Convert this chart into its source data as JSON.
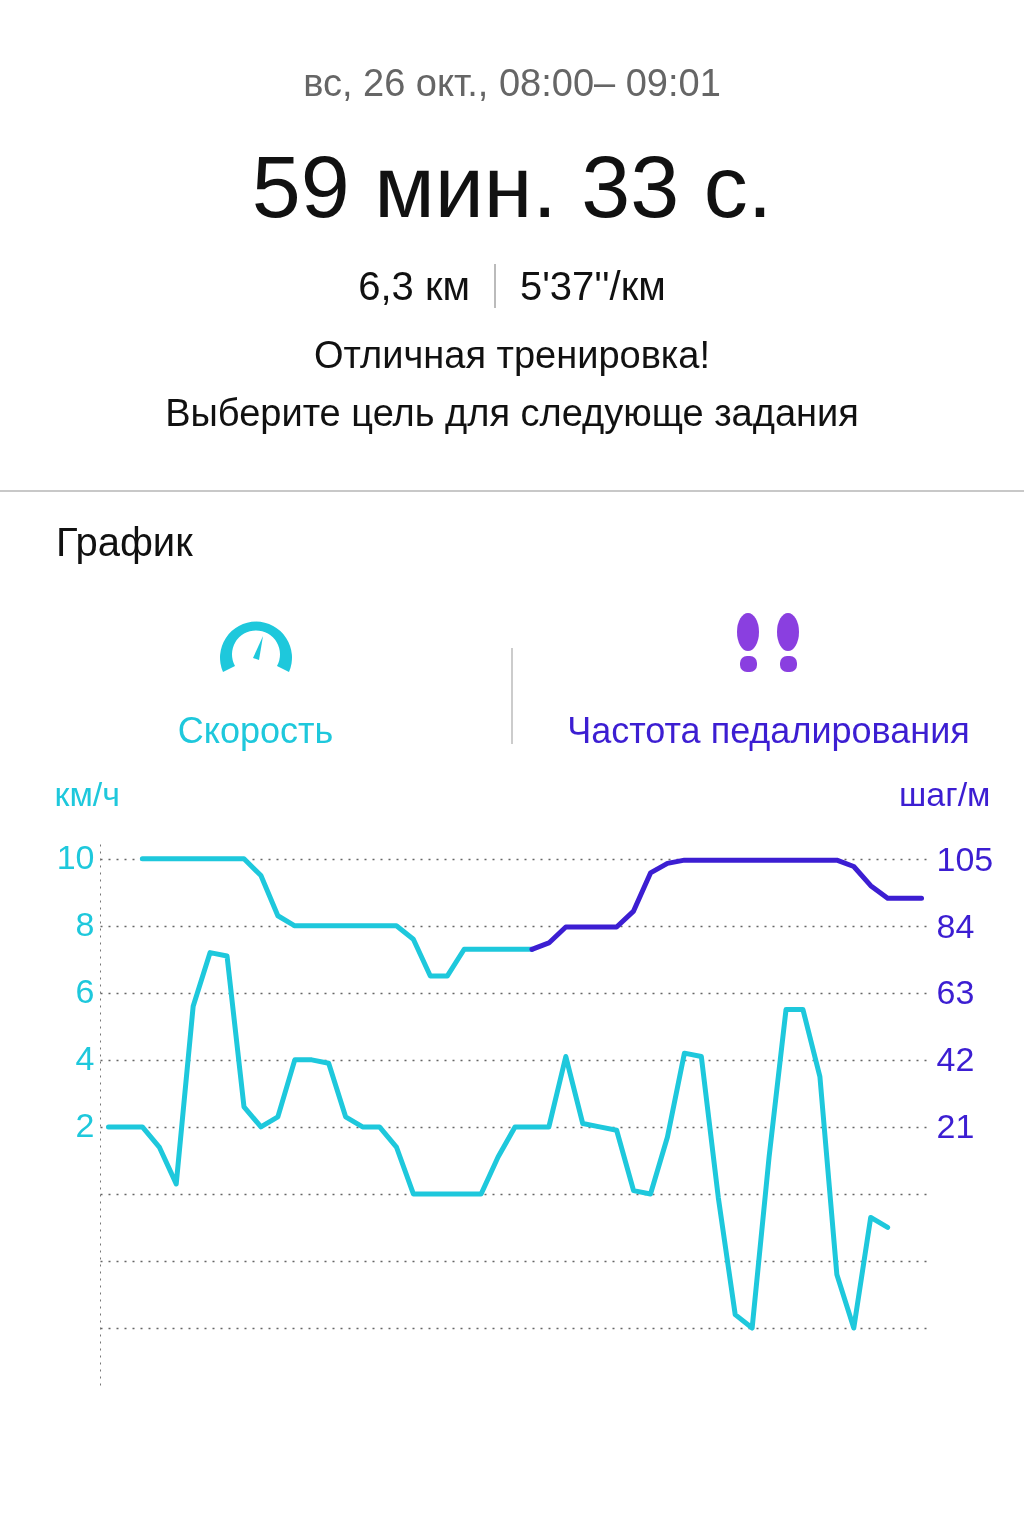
{
  "chart_data": {
    "type": "line",
    "title": "График",
    "annotations": [
      "вс, 26 окт., 08:00– 09:01",
      "59 мин. 33 с.",
      "6,3 км",
      "5'37''/км",
      "Отличная тренировка!",
      "Выберите цель для следующе задания"
    ],
    "ylabel": "км/ч",
    "y2label": "шаг/м",
    "categories": [
      null,
      null,
      null,
      null,
      null,
      null,
      null,
      null,
      null,
      null,
      null,
      null,
      null,
      null,
      null,
      null,
      null,
      null,
      null,
      null,
      null,
      null,
      null,
      null,
      null,
      null,
      null,
      null,
      null,
      null,
      null,
      null,
      null,
      null,
      null,
      null,
      null,
      null,
      null,
      null,
      null,
      null,
      null,
      null,
      null,
      null,
      null,
      null,
      null
    ],
    "series": [
      {
        "name": "Скорость",
        "color": "#1ec8dc",
        "axis": "y",
        "values": [
          null,
          null,
          10,
          10,
          10,
          10,
          10,
          10,
          10,
          9.5,
          8.3,
          8,
          8,
          8,
          8,
          8,
          8,
          8,
          7.6,
          6.5,
          6.5,
          7.3,
          7.3,
          7.3,
          7.3,
          7.3,
          null,
          null,
          null,
          null,
          null,
          null,
          null,
          null,
          null,
          null,
          null,
          null,
          null,
          null,
          null,
          null,
          null,
          null,
          null,
          null,
          null,
          null,
          null
        ]
      },
      {
        "name": "Частота педалирования",
        "color": "#3c1ed2",
        "axis": "y2",
        "values": [
          null,
          null,
          null,
          null,
          null,
          null,
          null,
          null,
          null,
          null,
          null,
          null,
          null,
          null,
          null,
          null,
          null,
          null,
          null,
          null,
          null,
          null,
          null,
          null,
          null,
          77,
          79,
          84,
          84,
          84,
          84,
          89,
          101,
          104,
          105,
          105,
          105,
          105,
          105,
          105,
          105,
          105,
          105,
          105,
          103,
          97,
          93,
          93,
          93
        ]
      },
      {
        "color": "#1ec8dc",
        "axis": "y",
        "values": [
          2,
          2,
          2,
          1.4,
          0.3,
          5.6,
          7.2,
          7.1,
          2.6,
          2,
          2.3,
          4,
          4,
          3.9,
          2.3,
          2,
          2,
          1.4,
          0,
          0,
          0,
          0,
          0,
          1.1,
          2,
          2,
          2,
          4.1,
          2.1,
          2,
          1.9,
          0.1,
          0,
          1.7,
          4.2,
          4.1,
          -0.1,
          -3.6,
          -4,
          1.1,
          5.5,
          5.5,
          3.5,
          -2.4,
          -4,
          -0.7,
          -1,
          null,
          null
        ]
      }
    ],
    "ylim": [
      -5.7,
      10.5
    ],
    "yticks": [
      10,
      8,
      6,
      4,
      2,
      {
        "value": 0,
        "label": null
      },
      {
        "value": -2,
        "label": null
      },
      {
        "value": -4,
        "label": null
      }
    ],
    "y2lim": [
      -59.8,
      110.7
    ],
    "y2ticks": [
      105,
      84,
      63,
      42,
      21
    ],
    "grid": "y",
    "legend": "top",
    "marker": "none",
    "line_style": "solid"
  }
}
